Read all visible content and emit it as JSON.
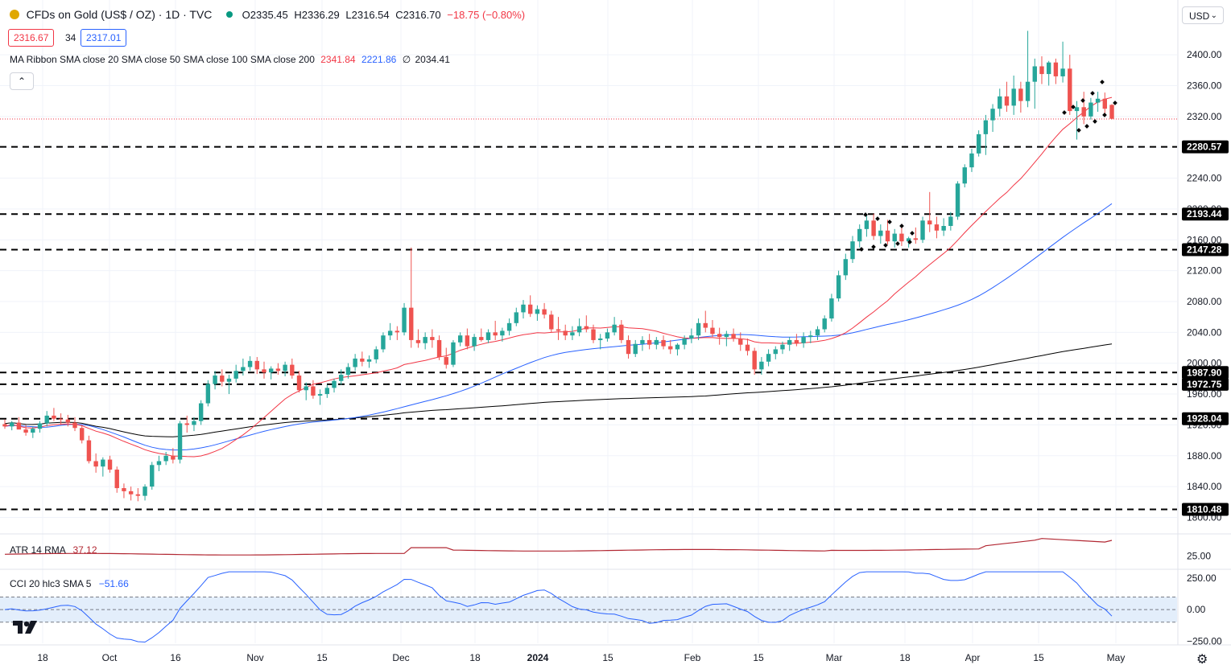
{
  "header": {
    "symbol": "CFDs on Gold (US$ / OZ) · 1D · TVC",
    "open": "O2335.45",
    "high": "H2336.29",
    "low": "L2316.54",
    "close": "C2316.70",
    "change": "−18.75 (−0.80%)",
    "bid": "2316.67",
    "spread": "34",
    "ask": "2317.01",
    "ma_label": "MA Ribbon SMA close 20 SMA close 50 SMA close 100 SMA close 200",
    "ma20_value": "2341.84",
    "ma50_value": "2221.86",
    "ma200_value": "2034.41",
    "ma100_glyph": "∅",
    "currency": "USD"
  },
  "indicators": {
    "atr_label": "ATR 14 RMA",
    "atr_value": "37.12",
    "cci_label": "CCI 20 hlc3 SMA 5",
    "cci_value": "−51.66"
  },
  "colors": {
    "up": "#26a69a",
    "down": "#ef5350",
    "ma20": "#f23645",
    "ma50": "#2962ff",
    "ma200": "#000000",
    "atr": "#b22833",
    "cci": "#2962ff",
    "cci_band": "#e3eefb"
  },
  "chart_data": {
    "type": "candlestick",
    "ylim": [
      1780,
      2430
    ],
    "y_ticks": [
      "1800.00",
      "1840.00",
      "1880.00",
      "1920.00",
      "1960.00",
      "2000.00",
      "2040.00",
      "2080.00",
      "2120.00",
      "2160.00",
      "2200.00",
      "2240.00",
      "2280.00",
      "2320.00",
      "2360.00",
      "2400.00"
    ],
    "x_ticks": [
      "18",
      "Oct",
      "16",
      "Nov",
      "15",
      "Dec",
      "18",
      "2024",
      "15",
      "Feb",
      "15",
      "Mar",
      "18",
      "Apr",
      "15",
      "May"
    ],
    "current_price": 2316.7,
    "horizontal_levels": [
      "2280.57",
      "2193.44",
      "2147.28",
      "1987.90",
      "1972.75",
      "1928.04",
      "1810.48"
    ],
    "candles": [
      [
        1921,
        1927,
        1915,
        1918
      ],
      [
        1918,
        1925,
        1913,
        1923
      ],
      [
        1923,
        1930,
        1917,
        1914
      ],
      [
        1914,
        1920,
        1906,
        1910
      ],
      [
        1910,
        1918,
        1903,
        1915
      ],
      [
        1915,
        1925,
        1910,
        1922
      ],
      [
        1922,
        1938,
        1918,
        1932
      ],
      [
        1932,
        1942,
        1925,
        1928
      ],
      [
        1928,
        1935,
        1920,
        1927
      ],
      [
        1927,
        1933,
        1918,
        1923
      ],
      [
        1923,
        1930,
        1912,
        1916
      ],
      [
        1916,
        1920,
        1896,
        1900
      ],
      [
        1900,
        1906,
        1870,
        1873
      ],
      [
        1873,
        1883,
        1858,
        1866
      ],
      [
        1866,
        1878,
        1853,
        1875
      ],
      [
        1875,
        1880,
        1858,
        1862
      ],
      [
        1862,
        1866,
        1832,
        1838
      ],
      [
        1838,
        1844,
        1825,
        1834
      ],
      [
        1834,
        1840,
        1822,
        1830
      ],
      [
        1830,
        1838,
        1821,
        1828
      ],
      [
        1828,
        1843,
        1822,
        1840
      ],
      [
        1840,
        1872,
        1836,
        1868
      ],
      [
        1868,
        1880,
        1860,
        1873
      ],
      [
        1873,
        1885,
        1868,
        1880
      ],
      [
        1880,
        1890,
        1870,
        1875
      ],
      [
        1875,
        1925,
        1870,
        1922
      ],
      [
        1922,
        1932,
        1910,
        1920
      ],
      [
        1920,
        1930,
        1912,
        1925
      ],
      [
        1925,
        1952,
        1920,
        1948
      ],
      [
        1948,
        1978,
        1944,
        1973
      ],
      [
        1973,
        1990,
        1966,
        1984
      ],
      [
        1984,
        1992,
        1970,
        1976
      ],
      [
        1976,
        1985,
        1960,
        1980
      ],
      [
        1980,
        1998,
        1975,
        1990
      ],
      [
        1990,
        2006,
        1984,
        1995
      ],
      [
        1995,
        2009,
        1990,
        2003
      ],
      [
        2003,
        2008,
        1986,
        1992
      ],
      [
        1992,
        2002,
        1980,
        1988
      ],
      [
        1988,
        1996,
        1979,
        1993
      ],
      [
        1993,
        2000,
        1985,
        1990
      ],
      [
        1990,
        2002,
        1983,
        1998
      ],
      [
        1998,
        2006,
        1980,
        1984
      ],
      [
        1984,
        1990,
        1962,
        1965
      ],
      [
        1965,
        1975,
        1952,
        1970
      ],
      [
        1970,
        1978,
        1954,
        1958
      ],
      [
        1958,
        1966,
        1946,
        1960
      ],
      [
        1960,
        1972,
        1955,
        1968
      ],
      [
        1968,
        1980,
        1962,
        1977
      ],
      [
        1977,
        1992,
        1972,
        1985
      ],
      [
        1985,
        2000,
        1980,
        1995
      ],
      [
        1995,
        2012,
        1990,
        2006
      ],
      [
        2006,
        2015,
        1996,
        2002
      ],
      [
        2002,
        2010,
        1994,
        2005
      ],
      [
        2005,
        2022,
        2000,
        2018
      ],
      [
        2018,
        2040,
        2014,
        2036
      ],
      [
        2036,
        2052,
        2030,
        2042
      ],
      [
        2042,
        2048,
        2030,
        2040
      ],
      [
        2040,
        2078,
        2036,
        2072
      ],
      [
        2072,
        2150,
        2020,
        2030
      ],
      [
        2030,
        2044,
        2020,
        2026
      ],
      [
        2026,
        2040,
        2018,
        2034
      ],
      [
        2034,
        2044,
        2020,
        2030
      ],
      [
        2030,
        2036,
        2004,
        2008
      ],
      [
        2008,
        2020,
        1993,
        1998
      ],
      [
        1998,
        2030,
        1995,
        2027
      ],
      [
        2027,
        2040,
        2022,
        2036
      ],
      [
        2036,
        2045,
        2018,
        2022
      ],
      [
        2022,
        2038,
        2016,
        2034
      ],
      [
        2034,
        2045,
        2028,
        2030
      ],
      [
        2030,
        2044,
        2026,
        2040
      ],
      [
        2040,
        2055,
        2030,
        2036
      ],
      [
        2036,
        2046,
        2028,
        2042
      ],
      [
        2042,
        2058,
        2036,
        2052
      ],
      [
        2052,
        2072,
        2048,
        2066
      ],
      [
        2066,
        2082,
        2058,
        2076
      ],
      [
        2076,
        2088,
        2060,
        2064
      ],
      [
        2064,
        2075,
        2055,
        2070
      ],
      [
        2070,
        2078,
        2058,
        2063
      ],
      [
        2063,
        2068,
        2040,
        2044
      ],
      [
        2044,
        2060,
        2030,
        2042
      ],
      [
        2042,
        2050,
        2030,
        2036
      ],
      [
        2036,
        2048,
        2030,
        2040
      ],
      [
        2040,
        2058,
        2035,
        2048
      ],
      [
        2048,
        2062,
        2040,
        2044
      ],
      [
        2044,
        2050,
        2026,
        2030
      ],
      [
        2030,
        2038,
        2018,
        2032
      ],
      [
        2032,
        2045,
        2028,
        2040
      ],
      [
        2040,
        2060,
        2036,
        2050
      ],
      [
        2050,
        2056,
        2026,
        2030
      ],
      [
        2030,
        2036,
        2006,
        2012
      ],
      [
        2012,
        2030,
        2008,
        2025
      ],
      [
        2025,
        2035,
        2016,
        2030
      ],
      [
        2030,
        2038,
        2018,
        2024
      ],
      [
        2024,
        2034,
        2018,
        2030
      ],
      [
        2030,
        2036,
        2018,
        2022
      ],
      [
        2022,
        2030,
        2012,
        2018
      ],
      [
        2018,
        2026,
        2010,
        2024
      ],
      [
        2024,
        2036,
        2018,
        2032
      ],
      [
        2032,
        2045,
        2026,
        2036
      ],
      [
        2036,
        2058,
        2030,
        2052
      ],
      [
        2052,
        2068,
        2040,
        2046
      ],
      [
        2046,
        2056,
        2034,
        2038
      ],
      [
        2038,
        2046,
        2024,
        2034
      ],
      [
        2034,
        2042,
        2022,
        2038
      ],
      [
        2038,
        2045,
        2028,
        2032
      ],
      [
        2032,
        2040,
        2016,
        2024
      ],
      [
        2024,
        2032,
        2010,
        2016
      ],
      [
        2016,
        2020,
        1985,
        1992
      ],
      [
        1992,
        2008,
        1985,
        2002
      ],
      [
        2002,
        2018,
        1996,
        2012
      ],
      [
        2012,
        2022,
        2005,
        2018
      ],
      [
        2018,
        2028,
        2012,
        2024
      ],
      [
        2024,
        2034,
        2016,
        2030
      ],
      [
        2030,
        2038,
        2022,
        2026
      ],
      [
        2026,
        2040,
        2020,
        2034
      ],
      [
        2034,
        2042,
        2026,
        2036
      ],
      [
        2036,
        2048,
        2030,
        2044
      ],
      [
        2044,
        2062,
        2040,
        2058
      ],
      [
        2058,
        2090,
        2054,
        2084
      ],
      [
        2084,
        2120,
        2080,
        2114
      ],
      [
        2114,
        2142,
        2108,
        2135
      ],
      [
        2135,
        2165,
        2130,
        2158
      ],
      [
        2158,
        2180,
        2150,
        2174
      ],
      [
        2174,
        2192,
        2164,
        2185
      ],
      [
        2185,
        2194,
        2160,
        2165
      ],
      [
        2165,
        2180,
        2155,
        2172
      ],
      [
        2172,
        2186,
        2154,
        2158
      ],
      [
        2158,
        2174,
        2150,
        2168
      ],
      [
        2168,
        2178,
        2152,
        2158
      ],
      [
        2158,
        2164,
        2150,
        2162
      ],
      [
        2162,
        2176,
        2155,
        2160
      ],
      [
        2160,
        2190,
        2156,
        2185
      ],
      [
        2185,
        2222,
        2170,
        2180
      ],
      [
        2180,
        2190,
        2162,
        2172
      ],
      [
        2172,
        2188,
        2165,
        2178
      ],
      [
        2178,
        2196,
        2172,
        2190
      ],
      [
        2190,
        2236,
        2186,
        2233
      ],
      [
        2233,
        2258,
        2228,
        2254
      ],
      [
        2254,
        2278,
        2248,
        2272
      ],
      [
        2272,
        2302,
        2268,
        2297
      ],
      [
        2297,
        2322,
        2270,
        2315
      ],
      [
        2315,
        2336,
        2300,
        2330
      ],
      [
        2330,
        2356,
        2320,
        2346
      ],
      [
        2346,
        2365,
        2326,
        2334
      ],
      [
        2334,
        2373,
        2322,
        2356
      ],
      [
        2356,
        2365,
        2325,
        2340
      ],
      [
        2340,
        2431,
        2332,
        2365
      ],
      [
        2365,
        2395,
        2330,
        2385
      ],
      [
        2385,
        2398,
        2362,
        2375
      ],
      [
        2375,
        2392,
        2360,
        2390
      ],
      [
        2390,
        2395,
        2362,
        2372
      ],
      [
        2372,
        2417,
        2364,
        2382
      ],
      [
        2382,
        2400,
        2322,
        2327
      ],
      [
        2327,
        2340,
        2290,
        2332
      ],
      [
        2332,
        2352,
        2310,
        2320
      ],
      [
        2320,
        2344,
        2316,
        2338
      ],
      [
        2338,
        2352,
        2326,
        2343
      ],
      [
        2343,
        2351,
        2322,
        2330
      ],
      [
        2335,
        2336,
        2316,
        2317
      ]
    ],
    "atr": {
      "ylim": [
        15,
        42
      ],
      "tick": "25.00",
      "last": 37.12
    },
    "cci": {
      "ylim": [
        -280,
        320
      ],
      "ticks": [
        "250.00",
        "0.00",
        "−250.00"
      ],
      "band": [
        -100,
        100
      ],
      "last": -51.66
    }
  }
}
